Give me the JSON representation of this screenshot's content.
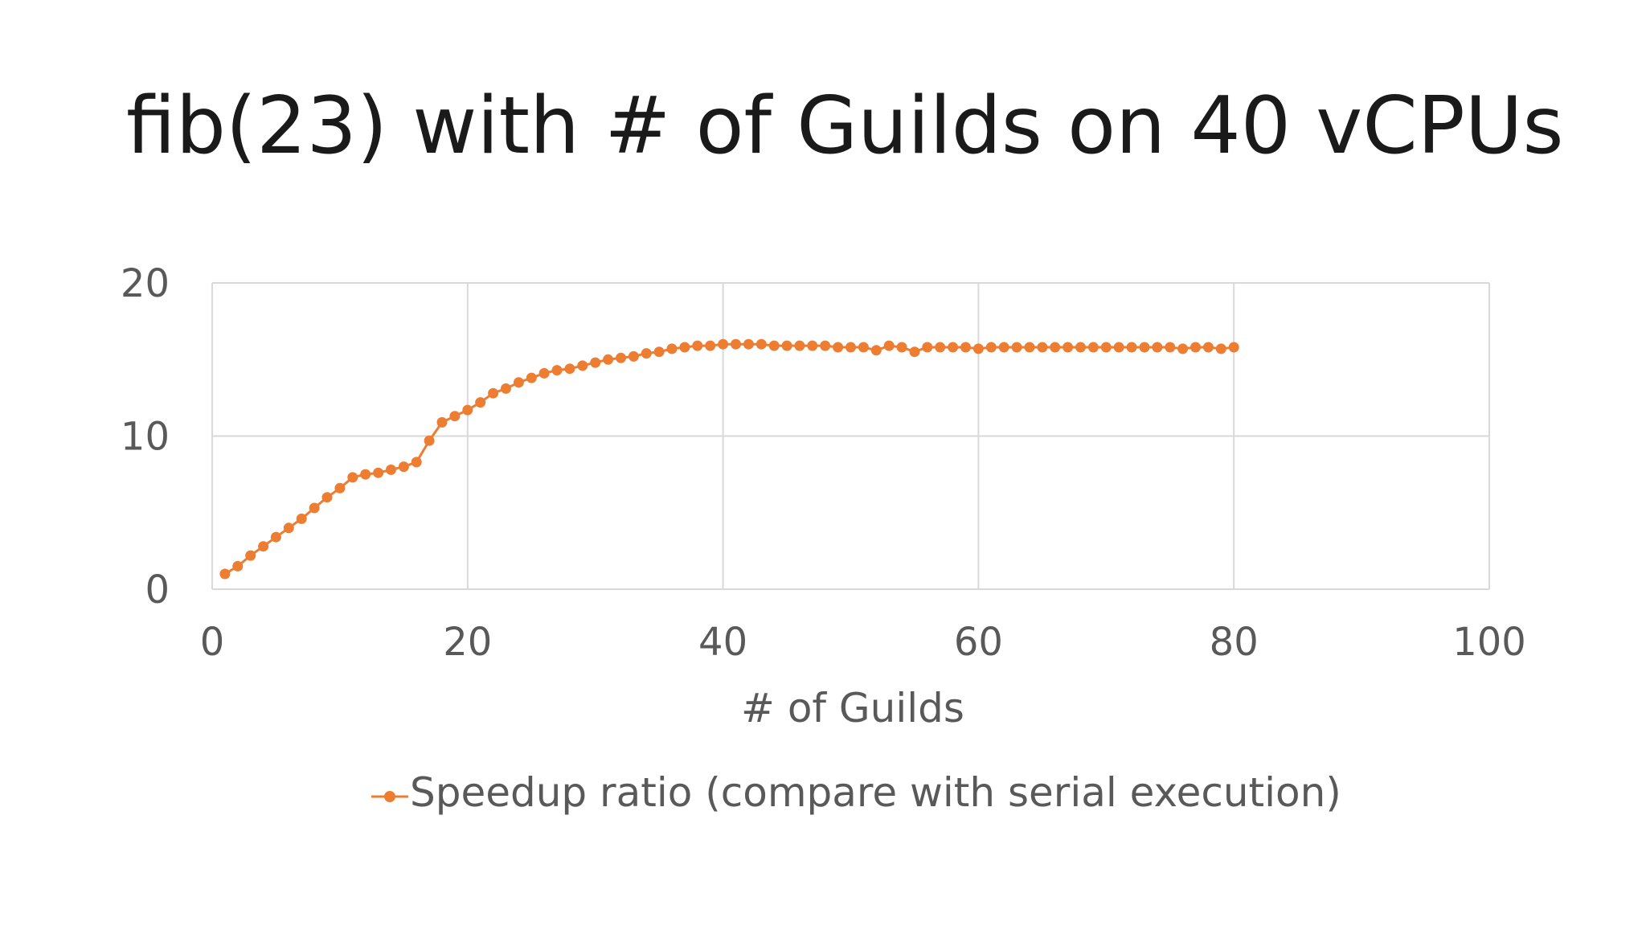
{
  "chart_data": {
    "type": "line",
    "title": "fib(23) with # of Guilds on 40 vCPUs",
    "xlabel": "# of Guilds",
    "ylabel": "",
    "xlim": [
      0,
      100
    ],
    "ylim": [
      0,
      20
    ],
    "xticks": [
      "0",
      "20",
      "40",
      "60",
      "80",
      "100"
    ],
    "yticks": [
      "0",
      "10",
      "20"
    ],
    "grid": true,
    "legend_position": "bottom",
    "series": [
      {
        "name": "Speedup ratio (compare with serial execution)",
        "color": "#ed7d31",
        "x": [
          1,
          2,
          3,
          4,
          5,
          6,
          7,
          8,
          9,
          10,
          11,
          12,
          13,
          14,
          15,
          16,
          17,
          18,
          19,
          20,
          21,
          22,
          23,
          24,
          25,
          26,
          27,
          28,
          29,
          30,
          31,
          32,
          33,
          34,
          35,
          36,
          37,
          38,
          39,
          40,
          41,
          42,
          43,
          44,
          45,
          46,
          47,
          48,
          49,
          50,
          51,
          52,
          53,
          54,
          55,
          56,
          57,
          58,
          59,
          60,
          61,
          62,
          63,
          64,
          65,
          66,
          67,
          68,
          69,
          70,
          71,
          72,
          73,
          74,
          75,
          76,
          77,
          78,
          79,
          80
        ],
        "y": [
          1.0,
          1.5,
          2.2,
          2.8,
          3.4,
          4.0,
          4.6,
          5.3,
          6.0,
          6.6,
          7.3,
          7.5,
          7.6,
          7.8,
          8.0,
          8.3,
          9.7,
          10.9,
          11.3,
          11.7,
          12.2,
          12.8,
          13.1,
          13.5,
          13.8,
          14.1,
          14.3,
          14.4,
          14.6,
          14.8,
          15.0,
          15.1,
          15.2,
          15.4,
          15.5,
          15.7,
          15.8,
          15.9,
          15.9,
          16.0,
          16.0,
          16.0,
          16.0,
          15.9,
          15.9,
          15.9,
          15.9,
          15.9,
          15.8,
          15.8,
          15.8,
          15.6,
          15.9,
          15.8,
          15.5,
          15.8,
          15.8,
          15.8,
          15.8,
          15.7,
          15.8,
          15.8,
          15.8,
          15.8,
          15.8,
          15.8,
          15.8,
          15.8,
          15.8,
          15.8,
          15.8,
          15.8,
          15.8,
          15.8,
          15.8,
          15.7,
          15.8,
          15.8,
          15.7,
          15.8
        ]
      }
    ]
  }
}
